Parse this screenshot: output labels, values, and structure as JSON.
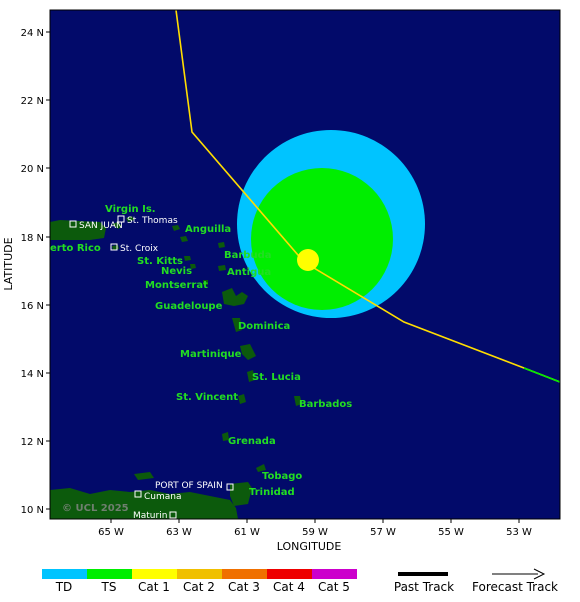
{
  "axes": {
    "x_title": "LONGITUDE",
    "y_title": "LATITUDE",
    "x_ticks": [
      "65 W",
      "63 W",
      "61 W",
      "59 W",
      "57 W",
      "55 W",
      "53 W"
    ],
    "y_ticks": [
      "24 N",
      "22 N",
      "20 N",
      "18 N",
      "16 N",
      "14 N",
      "12 N",
      "10 N"
    ]
  },
  "places_green": [
    "Virgin Is.",
    "Anguilla",
    "erto Rico",
    "St. Kitts",
    "Barbuda",
    "Nevis",
    "Antigua",
    "Montserrat",
    "Guadeloupe",
    "Dominica",
    "Martinique",
    "St. Lucia",
    "St. Vincent",
    "Barbados",
    "Grenada",
    "Tobago",
    "Trinidad"
  ],
  "places_white": [
    "SAN JUAN",
    "St. Thomas",
    "St. Croix",
    "PORT OF SPAIN",
    "Cumana",
    "Maturin"
  ],
  "credit": "© UCL 2025",
  "legend": {
    "categories": [
      {
        "label": "TD",
        "color": "#00c4ff"
      },
      {
        "label": "TS",
        "color": "#00ee00"
      },
      {
        "label": "Cat 1",
        "color": "#ffff00"
      },
      {
        "label": "Cat 2",
        "color": "#f0c000"
      },
      {
        "label": "Cat 3",
        "color": "#f07000"
      },
      {
        "label": "Cat 4",
        "color": "#ee0000"
      },
      {
        "label": "Cat 5",
        "color": "#cc00cc"
      }
    ],
    "past_track": "Past Track",
    "forecast_track": "Forecast Track"
  },
  "colors": {
    "ocean": "#020a6a",
    "land": "#0c5a0c",
    "td_wind": "#00c4ff",
    "ts_wind": "#00ee00",
    "track": "#ffdd00",
    "storm_center": "#ffff00"
  }
}
